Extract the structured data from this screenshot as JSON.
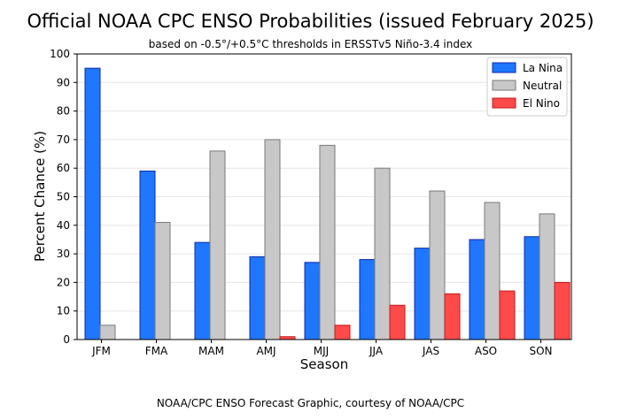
{
  "header": {
    "title": "Official NOAA CPC ENSO Probabilities (issued February 2025)",
    "subtitle": "based on -0.5°/+0.5°C thresholds in ERSSTv5 Niño-3.4 index"
  },
  "footer": {
    "credit": "NOAA/CPC ENSO Forecast Graphic, courtesy of NOAA/CPC"
  },
  "chart_data": {
    "type": "bar",
    "title": "Official NOAA CPC ENSO Probabilities (issued February 2025)",
    "subtitle": "based on -0.5°/+0.5°C thresholds in ERSSTv5 Niño-3.4 index",
    "xlabel": "Season",
    "ylabel": "Percent Chance (%)",
    "ylim": [
      0,
      100
    ],
    "yticks": [
      0,
      10,
      20,
      30,
      40,
      50,
      60,
      70,
      80,
      90,
      100
    ],
    "grid": true,
    "legend_position": "top-right",
    "categories": [
      "JFM",
      "FMA",
      "MAM",
      "AMJ",
      "MJJ",
      "JJA",
      "JAS",
      "ASO",
      "SON"
    ],
    "series": [
      {
        "name": "La Nina",
        "color": "#1f77ff",
        "edge": "#0b2aa8",
        "values": [
          95,
          59,
          34,
          29,
          27,
          28,
          32,
          35,
          36
        ]
      },
      {
        "name": "Neutral",
        "color": "#c8c8c8",
        "edge": "#7a7a7a",
        "values": [
          5,
          41,
          66,
          70,
          68,
          60,
          52,
          48,
          44
        ]
      },
      {
        "name": "El Nino",
        "color": "#ff4a4a",
        "edge": "#c01818",
        "values": [
          0,
          0,
          0,
          1,
          5,
          12,
          16,
          17,
          20
        ]
      }
    ]
  }
}
